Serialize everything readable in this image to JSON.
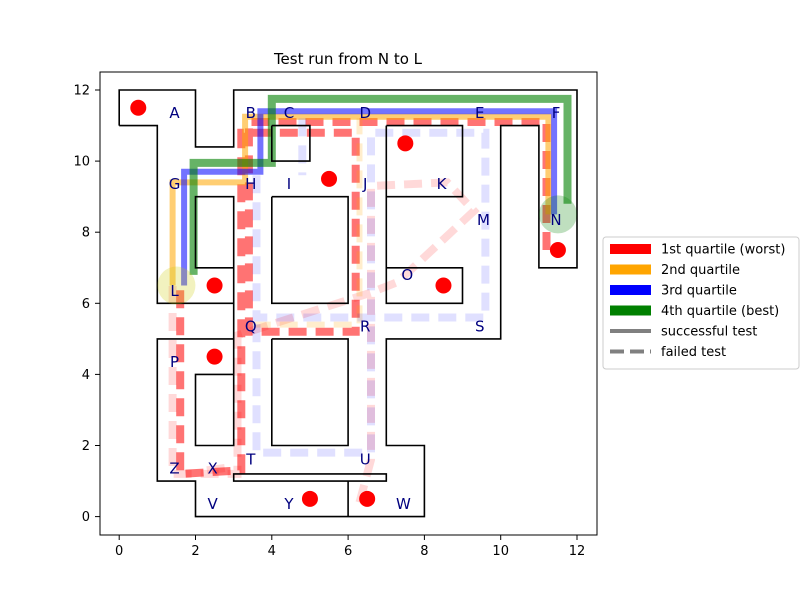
{
  "chart_data": {
    "type": "scatter",
    "title": "Test run from N to L",
    "xlabel": "",
    "ylabel": "",
    "xlim": [
      -0.5,
      12.5
    ],
    "ylim": [
      -0.5,
      12.5
    ],
    "xticks": [
      "0",
      "2",
      "4",
      "6",
      "8",
      "10",
      "12"
    ],
    "yticks": [
      "0",
      "2",
      "4",
      "6",
      "8",
      "10",
      "12"
    ],
    "grid": false,
    "legend_position": "right-outside",
    "legend": [
      {
        "label": "1st quartile (worst)",
        "color": "#ff0000",
        "style": "solid"
      },
      {
        "label": "2nd quartile",
        "color": "#ffa500",
        "style": "solid"
      },
      {
        "label": "3rd quartile",
        "color": "#0000ff",
        "style": "solid"
      },
      {
        "label": "4th quartile (best)",
        "color": "#008000",
        "style": "solid"
      },
      {
        "label": "successful test",
        "color": "#808080",
        "style": "solid"
      },
      {
        "label": "failed test",
        "color": "#808080",
        "style": "dashed"
      }
    ],
    "walls": [
      [
        [
          0,
          11
        ],
        [
          0,
          12
        ],
        [
          2,
          12
        ],
        [
          2,
          10.4
        ],
        [
          3,
          10.4
        ],
        [
          3,
          12
        ],
        [
          12,
          12
        ],
        [
          12,
          7
        ],
        [
          11,
          7
        ],
        [
          11,
          11
        ],
        [
          10,
          11
        ],
        [
          10,
          5
        ],
        [
          7,
          5
        ],
        [
          7,
          2
        ],
        [
          8,
          2
        ],
        [
          8,
          0
        ],
        [
          6,
          0
        ],
        [
          6,
          1
        ],
        [
          7,
          1
        ],
        [
          7,
          1.2
        ],
        [
          3,
          1.2
        ],
        [
          3,
          1
        ],
        [
          6,
          1
        ],
        [
          6,
          0
        ],
        [
          2,
          0
        ],
        [
          2,
          1
        ],
        [
          1,
          1
        ],
        [
          1,
          5
        ],
        [
          3,
          5
        ],
        [
          3,
          2
        ],
        [
          2,
          2
        ],
        [
          2,
          4
        ],
        [
          3,
          4
        ],
        [
          3,
          5
        ],
        [
          3,
          9
        ],
        [
          2,
          9
        ],
        [
          2,
          7
        ],
        [
          3,
          7
        ],
        [
          3,
          6
        ],
        [
          1,
          6
        ],
        [
          1,
          11
        ],
        [
          0,
          11
        ]
      ],
      [
        [
          4,
          11
        ],
        [
          5,
          11
        ],
        [
          5,
          10
        ],
        [
          4,
          10
        ],
        [
          4,
          11
        ]
      ],
      [
        [
          7,
          11
        ],
        [
          9,
          11
        ],
        [
          9,
          9
        ],
        [
          7,
          9
        ],
        [
          7,
          6
        ],
        [
          9,
          6
        ],
        [
          9,
          7
        ],
        [
          7,
          7
        ],
        [
          7,
          11
        ]
      ],
      [
        [
          4,
          9
        ],
        [
          6,
          9
        ],
        [
          6,
          6
        ],
        [
          4,
          6
        ],
        [
          4,
          9
        ]
      ],
      [
        [
          4,
          5
        ],
        [
          6,
          5
        ],
        [
          6,
          2
        ],
        [
          4,
          2
        ],
        [
          4,
          5
        ]
      ]
    ],
    "nodes": [
      {
        "label": "A",
        "x": 1.45,
        "y": 11.35
      },
      {
        "label": "B",
        "x": 3.45,
        "y": 11.35
      },
      {
        "label": "C",
        "x": 4.45,
        "y": 11.35
      },
      {
        "label": "D",
        "x": 6.45,
        "y": 11.35
      },
      {
        "label": "E",
        "x": 9.45,
        "y": 11.35
      },
      {
        "label": "F",
        "x": 11.45,
        "y": 11.35
      },
      {
        "label": "G",
        "x": 1.45,
        "y": 9.35
      },
      {
        "label": "H",
        "x": 3.45,
        "y": 9.35
      },
      {
        "label": "I",
        "x": 4.45,
        "y": 9.35
      },
      {
        "label": "J",
        "x": 6.45,
        "y": 9.35
      },
      {
        "label": "K",
        "x": 8.45,
        "y": 9.35
      },
      {
        "label": "M",
        "x": 9.55,
        "y": 8.35
      },
      {
        "label": "N",
        "x": 11.45,
        "y": 8.35
      },
      {
        "label": "O",
        "x": 7.55,
        "y": 6.8
      },
      {
        "label": "L",
        "x": 1.45,
        "y": 6.35
      },
      {
        "label": "Q",
        "x": 3.45,
        "y": 5.35
      },
      {
        "label": "R",
        "x": 6.45,
        "y": 5.35
      },
      {
        "label": "S",
        "x": 9.45,
        "y": 5.35
      },
      {
        "label": "P",
        "x": 1.45,
        "y": 4.35
      },
      {
        "label": "Z",
        "x": 1.45,
        "y": 1.35
      },
      {
        "label": "X",
        "x": 2.45,
        "y": 1.35
      },
      {
        "label": "T",
        "x": 3.45,
        "y": 1.6
      },
      {
        "label": "U",
        "x": 6.45,
        "y": 1.6
      },
      {
        "label": "V",
        "x": 2.45,
        "y": 0.35
      },
      {
        "label": "Y",
        "x": 4.45,
        "y": 0.35
      },
      {
        "label": "W",
        "x": 7.45,
        "y": 0.35
      }
    ],
    "red_dots": [
      {
        "x": 0.5,
        "y": 11.5
      },
      {
        "x": 7.5,
        "y": 10.5
      },
      {
        "x": 5.5,
        "y": 9.5
      },
      {
        "x": 11.5,
        "y": 7.5
      },
      {
        "x": 2.5,
        "y": 6.5
      },
      {
        "x": 8.5,
        "y": 6.5
      },
      {
        "x": 2.5,
        "y": 4.5
      },
      {
        "x": 5.0,
        "y": 0.5
      },
      {
        "x": 6.5,
        "y": 0.5
      }
    ],
    "endpoints": [
      {
        "name": "start",
        "label": "N",
        "x": 11.5,
        "y": 8.5,
        "color": "#008000"
      },
      {
        "name": "end",
        "label": "L",
        "x": 1.5,
        "y": 6.5,
        "color": "#cccc00"
      }
    ],
    "paths": [
      {
        "quartile": "1st quartile (worst)",
        "color": "#ff0000",
        "dashed": true,
        "opacity": 0.55,
        "width": 8,
        "points": [
          [
            11.2,
            7.5
          ],
          [
            11.2,
            11.1
          ],
          [
            3.4,
            11.1
          ],
          [
            3.4,
            5.2
          ],
          [
            6.2,
            5.2
          ],
          [
            6.2,
            10.8
          ],
          [
            3.2,
            10.8
          ],
          [
            3.2,
            1.3
          ],
          [
            1.6,
            1.2
          ],
          [
            1.6,
            6.5
          ]
        ]
      },
      {
        "quartile": "1st quartile (worst)",
        "color": "#ff0000",
        "dashed": true,
        "opacity": 0.15,
        "width": 8,
        "points": [
          [
            6.3,
            0.4
          ],
          [
            6.6,
            1.6
          ],
          [
            6.6,
            9.3
          ],
          [
            8.6,
            9.4
          ],
          [
            9.3,
            8.6
          ],
          [
            7.3,
            6.6
          ],
          [
            6.6,
            6.3
          ],
          [
            3.1,
            5.1
          ],
          [
            3.1,
            1.2
          ],
          [
            1.4,
            1.2
          ],
          [
            1.4,
            6.5
          ]
        ]
      },
      {
        "quartile": "1st quartile (worst)",
        "color": "#ff0000",
        "dashed": true,
        "opacity": 0.15,
        "width": 8,
        "points": [
          [
            2.3,
            1.3
          ],
          [
            3.0,
            1.4
          ]
        ]
      },
      {
        "quartile": "2nd quartile",
        "color": "#ffa500",
        "dashed": false,
        "opacity": 0.55,
        "width": 6,
        "points": [
          [
            11.25,
            8.5
          ],
          [
            11.25,
            11.25
          ],
          [
            3.3,
            11.25
          ],
          [
            3.3,
            9.4
          ],
          [
            1.4,
            9.4
          ],
          [
            1.4,
            6.5
          ]
        ]
      },
      {
        "quartile": "2nd quartile",
        "color": "#ffa500",
        "dashed": true,
        "opacity": 0.2,
        "width": 6,
        "points": [
          [
            3.5,
            5.4
          ],
          [
            6.3,
            5.4
          ],
          [
            6.3,
            11.2
          ]
        ]
      },
      {
        "quartile": "3rd quartile",
        "color": "#0000ff",
        "dashed": false,
        "opacity": 0.55,
        "width": 6,
        "points": [
          [
            11.4,
            8.5
          ],
          [
            11.4,
            11.4
          ],
          [
            3.7,
            11.4
          ],
          [
            3.7,
            9.7
          ],
          [
            1.7,
            9.7
          ],
          [
            1.7,
            6.5
          ]
        ]
      },
      {
        "quartile": "3rd quartile",
        "color": "#0000ff",
        "dashed": true,
        "opacity": 0.12,
        "width": 8,
        "points": [
          [
            3.6,
            9.6
          ],
          [
            3.6,
            5.6
          ],
          [
            9.6,
            5.6
          ],
          [
            9.6,
            10.8
          ],
          [
            6.6,
            10.8
          ],
          [
            6.6,
            1.8
          ],
          [
            3.6,
            1.8
          ],
          [
            3.6,
            5.6
          ]
        ]
      },
      {
        "quartile": "3rd quartile",
        "color": "#0000ff",
        "dashed": true,
        "opacity": 0.12,
        "width": 8,
        "points": [
          [
            4.8,
            11.2
          ],
          [
            4.8,
            9.6
          ]
        ]
      },
      {
        "quartile": "4th quartile (best)",
        "color": "#008000",
        "dashed": false,
        "opacity": 0.6,
        "width": 8,
        "points": [
          [
            11.75,
            8.8
          ],
          [
            11.75,
            11.75
          ],
          [
            4.0,
            11.75
          ],
          [
            4.0,
            9.95
          ],
          [
            1.95,
            9.95
          ],
          [
            1.95,
            6.8
          ]
        ]
      }
    ]
  }
}
